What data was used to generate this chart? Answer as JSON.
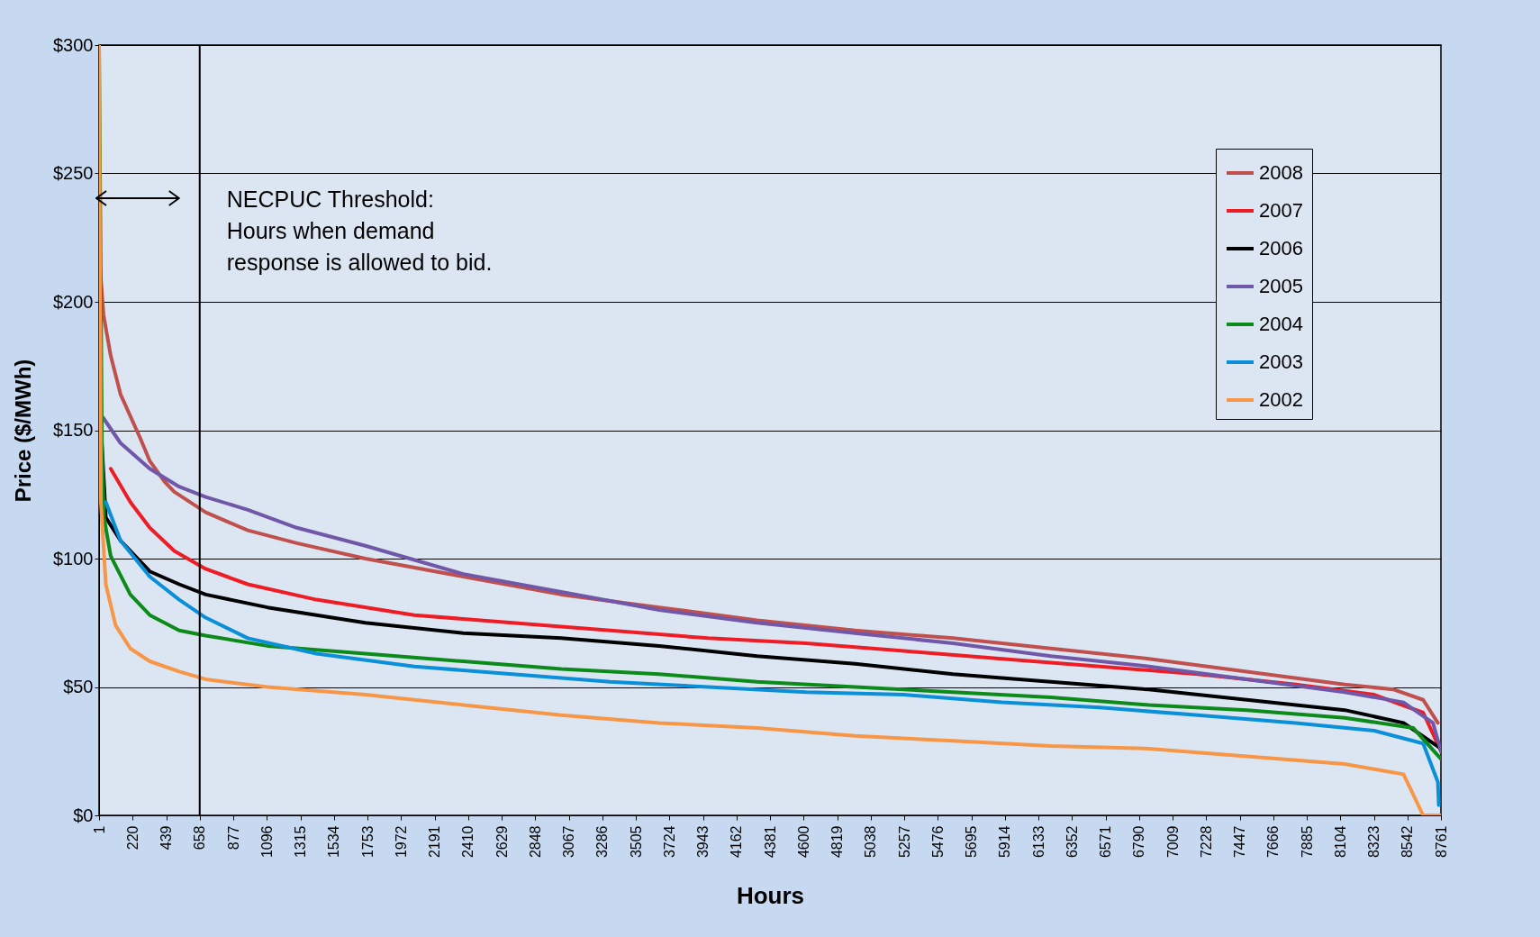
{
  "chart_data": {
    "type": "line",
    "xlabel": "Hours",
    "ylabel": "Price ($/MWh)",
    "xlim": [
      1,
      8761
    ],
    "xticks": [
      1,
      220,
      439,
      658,
      877,
      1096,
      1315,
      1534,
      1753,
      1972,
      2191,
      2410,
      2629,
      2848,
      3067,
      3286,
      3505,
      3724,
      3943,
      4162,
      4381,
      4600,
      4819,
      5038,
      5257,
      5476,
      5695,
      5914,
      6133,
      6352,
      6571,
      6790,
      7009,
      7228,
      7447,
      7666,
      7885,
      8104,
      8323,
      8542,
      8761
    ],
    "ylim": [
      0,
      300
    ],
    "yticks": [
      {
        "value": 0,
        "label": "$0"
      },
      {
        "value": 50,
        "label": "$50"
      },
      {
        "value": 100,
        "label": "$100"
      },
      {
        "value": 150,
        "label": "$150"
      },
      {
        "value": 200,
        "label": "$200"
      },
      {
        "value": 250,
        "label": "$250"
      },
      {
        "value": 300,
        "label": "$300"
      }
    ],
    "grid": "y",
    "legend": "top right",
    "series": [
      {
        "name": "2008",
        "color": "#c0504d",
        "x": [
          1,
          30,
          77,
          141,
          269,
          332,
          428,
          492,
          697,
          972,
          1292,
          1739,
          2379,
          3018,
          3657,
          4297,
          4936,
          5576,
          6215,
          6854,
          7494,
          8133,
          8453,
          8645,
          8741
        ],
        "values": [
          218,
          195,
          179,
          164,
          147,
          138,
          130,
          126,
          118,
          111,
          106,
          100,
          93,
          86,
          81,
          76,
          72,
          69,
          65,
          61,
          56,
          51,
          49,
          45,
          36
        ]
      },
      {
        "name": "2007",
        "color": "#ee1c25",
        "x": [
          77,
          205,
          332,
          492,
          697,
          972,
          1420,
          2059,
          2698,
          3338,
          3977,
          4617,
          5256,
          5895,
          6535,
          7174,
          7813,
          8325,
          8645,
          8761
        ],
        "values": [
          135,
          122,
          112,
          103,
          96,
          90,
          84,
          78,
          75,
          72,
          69,
          67,
          64,
          61,
          58,
          55,
          51,
          47,
          40,
          25
        ]
      },
      {
        "name": "2006",
        "color": "#000000",
        "x": [
          1,
          45,
          141,
          332,
          524,
          697,
          1100,
          1739,
          2379,
          3018,
          3657,
          4297,
          4936,
          5576,
          6215,
          6854,
          7494,
          8133,
          8517,
          8761
        ],
        "values": [
          165,
          116,
          107,
          95,
          90,
          86,
          81,
          75,
          71,
          69,
          66,
          62,
          59,
          55,
          52,
          49,
          45,
          41,
          36,
          26
        ]
      },
      {
        "name": "2005",
        "color": "#7057a8",
        "x": [
          26,
          141,
          332,
          524,
          697,
          972,
          1292,
          1739,
          2379,
          3018,
          3657,
          4297,
          4936,
          5576,
          6215,
          6854,
          7494,
          8133,
          8517,
          8709,
          8761
        ],
        "values": [
          155,
          145,
          135,
          128,
          124,
          119,
          112,
          105,
          94,
          87,
          80,
          75,
          71,
          67,
          62,
          58,
          53,
          48,
          44,
          36,
          25
        ]
      },
      {
        "name": "2004",
        "color": "#0c8a1a",
        "x": [
          1,
          20,
          33,
          77,
          205,
          332,
          524,
          697,
          1100,
          1739,
          2379,
          3018,
          3657,
          4297,
          4936,
          5576,
          6215,
          6854,
          7494,
          8133,
          8581,
          8761
        ],
        "values": [
          300,
          143,
          116,
          101,
          86,
          78,
          72,
          70,
          66,
          63,
          60,
          57,
          55,
          52,
          50,
          48,
          46,
          43,
          41,
          38,
          34,
          22
        ]
      },
      {
        "name": "2003",
        "color": "#0a8fd9",
        "x": [
          45,
          141,
          332,
          524,
          697,
          972,
          1420,
          2059,
          2698,
          3338,
          3977,
          4617,
          5256,
          5895,
          6535,
          7174,
          7813,
          8325,
          8645,
          8741,
          8747
        ],
        "values": [
          122,
          107,
          93,
          84,
          77,
          69,
          63,
          58,
          55,
          52,
          50,
          48,
          47,
          44,
          42,
          39,
          36,
          33,
          28,
          13,
          4
        ]
      },
      {
        "name": "2002",
        "color": "#f79646",
        "x": [
          1,
          13,
          45,
          109,
          205,
          332,
          524,
          697,
          1100,
          1739,
          2379,
          3018,
          3657,
          4297,
          4936,
          5576,
          6215,
          6854,
          7494,
          8133,
          8517,
          8645,
          8761
        ],
        "values": [
          300,
          122,
          90,
          74,
          65,
          60,
          56,
          53,
          50,
          47,
          43,
          39,
          36,
          34,
          31,
          29,
          27,
          26,
          23,
          20,
          16,
          0,
          0
        ]
      }
    ],
    "ref_lines": [
      {
        "axis": "x",
        "value": 658,
        "color": "#000000",
        "label": "NECPUC Threshold:\nHours when demand\nresponse is allowed to bid."
      }
    ]
  }
}
